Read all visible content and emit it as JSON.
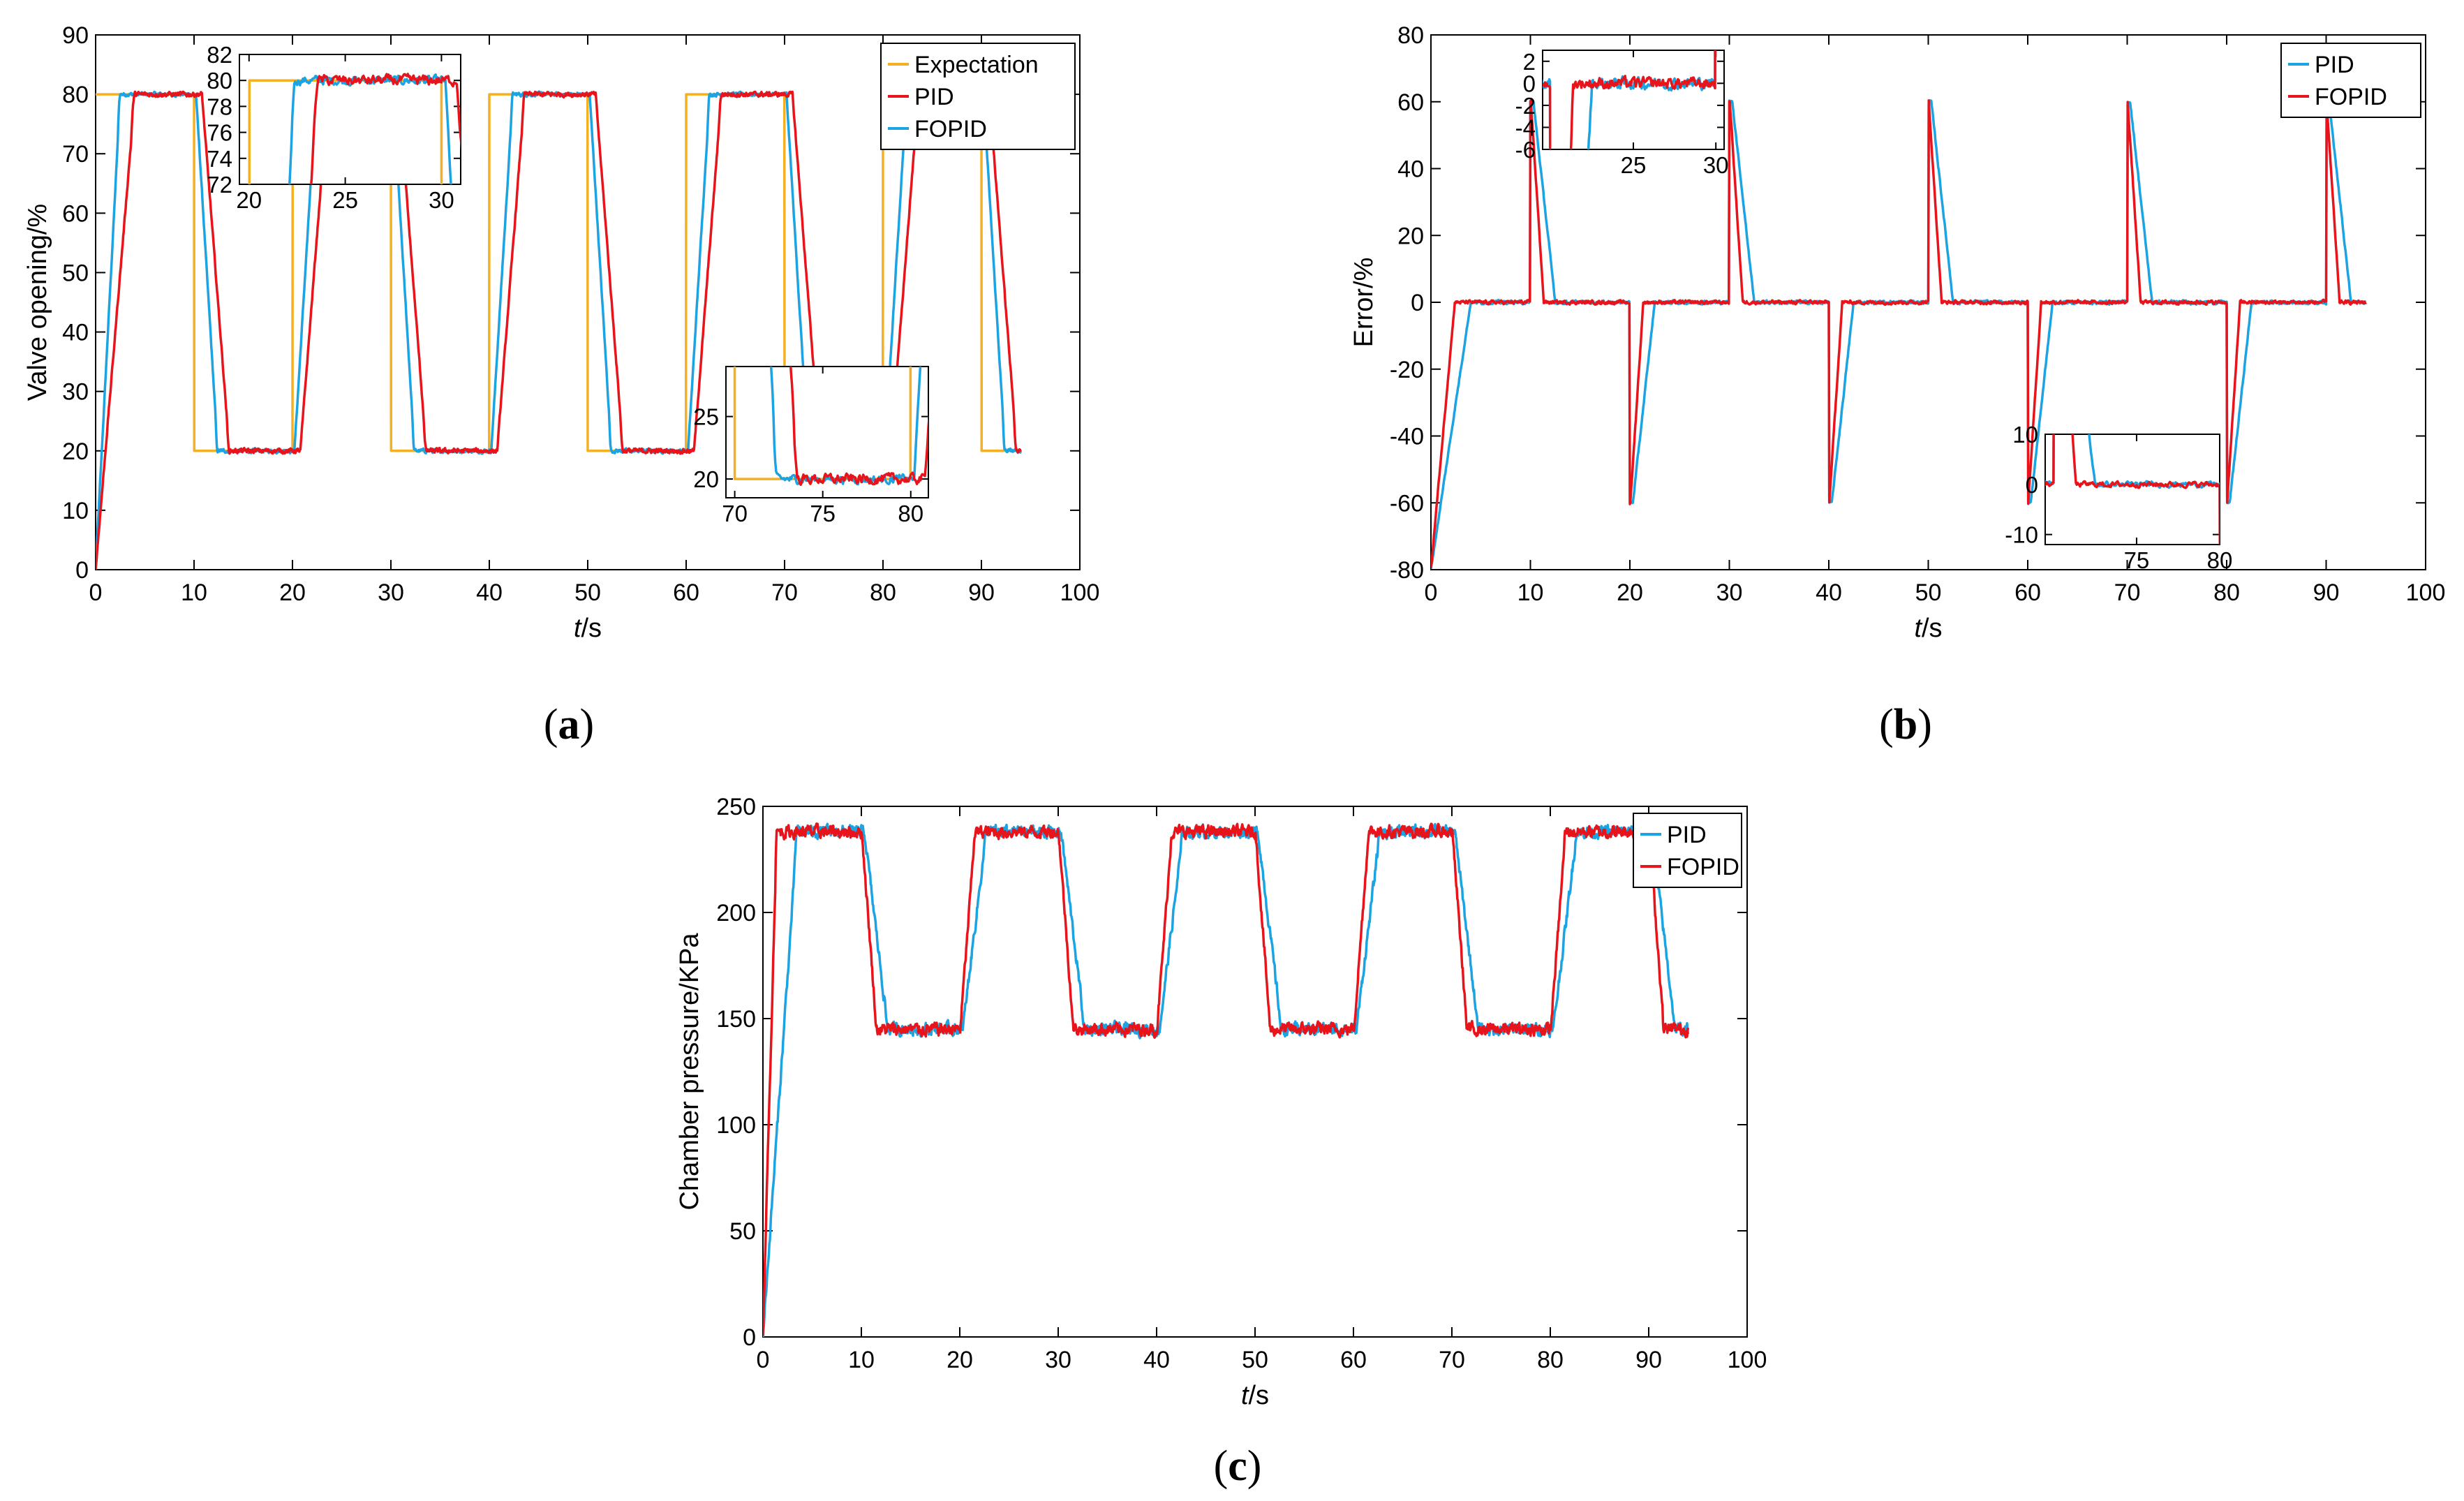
{
  "colors": {
    "expectation": "#F4B022",
    "pid_ab": "#E8141B",
    "fopid_ab": "#1BA3E2",
    "pid_bc": "#1BA3E2",
    "fopid_bc": "#E8141B",
    "axis": "#000000"
  },
  "chart_data": [
    {
      "id": "a",
      "type": "line",
      "panel_label": "a",
      "xlabel_italic": "t",
      "xlabel_rest": "/s",
      "ylabel": "Valve opening/%",
      "xlim": [
        0,
        100
      ],
      "ylim": [
        0,
        90
      ],
      "xticks": [
        0,
        10,
        20,
        30,
        40,
        50,
        60,
        70,
        80,
        90,
        100
      ],
      "yticks": [
        0,
        10,
        20,
        30,
        40,
        50,
        60,
        70,
        80,
        90
      ],
      "legend": [
        "Expectation",
        "PID",
        "FOPID"
      ],
      "legend_position": "top-right",
      "series_desc": "Square-wave setpoint 80/20 % switching every 10 s, 0–94 s",
      "setpoint_high": 80,
      "setpoint_low": 20,
      "period_half": 10,
      "t_end": 94,
      "insets": [
        {
          "xlim": [
            19.5,
            31
          ],
          "ylim": [
            72,
            82
          ],
          "xticks": [
            20,
            25,
            30
          ],
          "yticks": [
            72,
            74,
            76,
            78,
            80,
            82
          ],
          "position": "top-left"
        },
        {
          "xlim": [
            69.5,
            81
          ],
          "ylim": [
            18.5,
            29
          ],
          "xticks": [
            70,
            75,
            80
          ],
          "yticks": [
            20,
            25
          ],
          "position": "bottom-right"
        }
      ]
    },
    {
      "id": "b",
      "type": "line",
      "panel_label": "b",
      "xlabel_italic": "t",
      "xlabel_rest": "/s",
      "ylabel": "Error/%",
      "xlim": [
        0,
        100
      ],
      "ylim": [
        -80,
        80
      ],
      "xticks": [
        0,
        10,
        20,
        30,
        40,
        50,
        60,
        70,
        80,
        90,
        100
      ],
      "yticks": [
        -80,
        -60,
        -40,
        -20,
        0,
        20,
        40,
        60,
        80
      ],
      "legend": [
        "PID",
        "FOPID"
      ],
      "legend_position": "top-right",
      "series_desc": "Tracking error, spikes of ±60 % at each setpoint switch decaying to 0",
      "insets": [
        {
          "xlim": [
            19.5,
            30.5
          ],
          "ylim": [
            -6,
            3
          ],
          "xticks": [
            25,
            30
          ],
          "yticks": [
            2,
            0,
            -2,
            -4,
            -6
          ],
          "position": "top-left"
        },
        {
          "xlim": [
            69.5,
            80
          ],
          "ylim": [
            -12,
            10
          ],
          "xticks": [
            75,
            80
          ],
          "yticks": [
            10,
            0,
            -10
          ],
          "position": "bottom-right"
        }
      ]
    },
    {
      "id": "c",
      "type": "line",
      "panel_label": "c",
      "xlabel_italic": "t",
      "xlabel_rest": "/s",
      "ylabel": "Chamber pressure/KPa",
      "xlim": [
        0,
        100
      ],
      "ylim": [
        0,
        250
      ],
      "xticks": [
        0,
        10,
        20,
        30,
        40,
        50,
        60,
        70,
        80,
        90,
        100
      ],
      "yticks": [
        0,
        50,
        100,
        150,
        200,
        250
      ],
      "legend": [
        "PID",
        "FOPID"
      ],
      "legend_position": "top-right",
      "series_desc": "Chamber pressure alternating about 240 KPa and 145 KPa",
      "p_high": 238,
      "p_low": 145
    }
  ]
}
